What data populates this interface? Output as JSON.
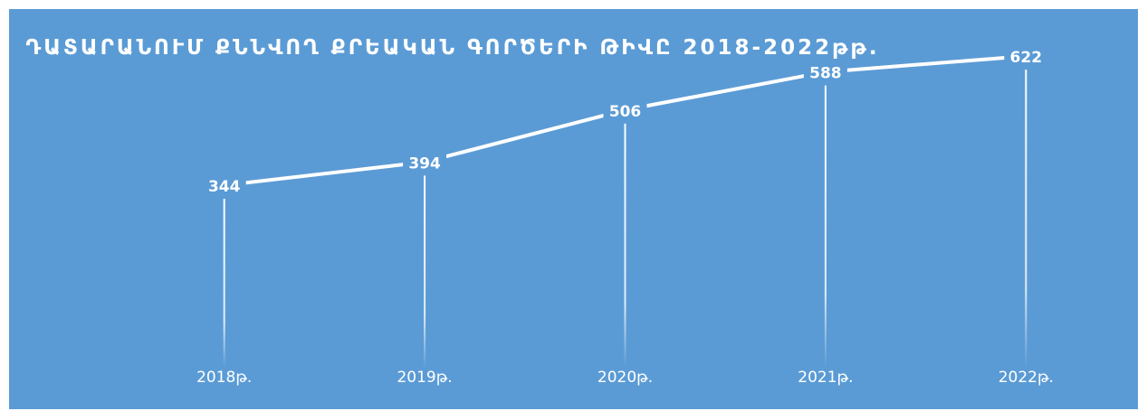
{
  "chart_data": {
    "type": "line",
    "title": "ԴԱՏԱՐԱՆՈՒՄ ՔՆՆՎՈՂ ՔՐԵԱԿԱՆ ԳՈՐԾԵՐԻ ԹԻՎԸ 2018-2022թթ.",
    "categories": [
      "2018թ.",
      "2019թ.",
      "2020թ.",
      "2021թ.",
      "2022թ."
    ],
    "values": [
      344,
      394,
      506,
      588,
      622
    ],
    "color": "#ffffff",
    "ylim": [
      0,
      700
    ]
  }
}
